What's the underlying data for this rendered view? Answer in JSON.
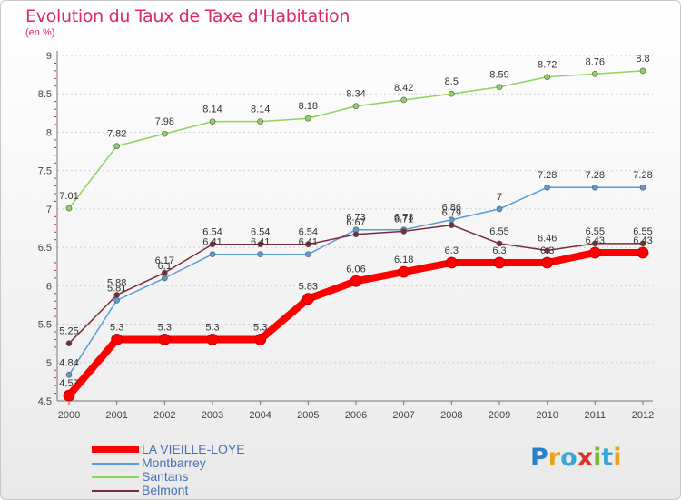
{
  "header": {
    "title": "Evolution du Taux de Taxe d'Habitation",
    "subtitle": "(en %)"
  },
  "logo": {
    "text": "Proxiti",
    "letters": [
      "P",
      "r",
      "o",
      "x",
      "i",
      "t",
      "i"
    ],
    "colors": [
      "#2a7fc9",
      "#e8a21c",
      "#3aa6d8",
      "#d9342b",
      "#7bb93a",
      "#3aa6d8",
      "#e8a21c"
    ]
  },
  "chart_data": {
    "type": "line",
    "title": "Evolution du Taux de Taxe d'Habitation",
    "subtitle": "(en %)",
    "x": [
      "2000",
      "2001",
      "2002",
      "2003",
      "2004",
      "2005",
      "2006",
      "2007",
      "2008",
      "2009",
      "2010",
      "2011",
      "2012"
    ],
    "ylim": [
      4.5,
      9
    ],
    "yticks": [
      "4.5",
      "5",
      "5.5",
      "6",
      "6.5",
      "7",
      "7.5",
      "8",
      "8.5",
      "9"
    ],
    "grid": "horizontal-dotted",
    "legend_position": "bottom-left",
    "series": [
      {
        "name": "LA VIEILLE-LOYE",
        "color": "#ff0000",
        "values": [
          4.57,
          5.3,
          5.3,
          5.3,
          5.3,
          5.83,
          6.06,
          6.18,
          6.3,
          6.3,
          6.3,
          6.43,
          6.43
        ],
        "labels": [
          "4.57",
          "5.3",
          "5.3",
          "5.3",
          "5.3",
          "5.83",
          "6.06",
          "6.18",
          "6.3",
          "6.3",
          "6.3",
          "6.43",
          "6.43"
        ]
      },
      {
        "name": "Montbarrey",
        "color": "#5b9bd5",
        "values": [
          4.84,
          5.81,
          6.1,
          6.41,
          6.41,
          6.41,
          6.73,
          6.73,
          6.86,
          7,
          7.28,
          7.28,
          7.28
        ],
        "labels": [
          "4.84",
          "5.81",
          "6.1",
          "6.41",
          "6.41",
          "6.41",
          "6.73",
          "6.73",
          "6.86",
          "7",
          "7.28",
          "7.28",
          "7.28"
        ]
      },
      {
        "name": "Santans",
        "color": "#8fd35a",
        "values": [
          7.01,
          7.82,
          7.98,
          8.14,
          8.14,
          8.18,
          8.34,
          8.42,
          8.5,
          8.59,
          8.72,
          8.76,
          8.8
        ],
        "labels": [
          "7.01",
          "7.82",
          "7.98",
          "8.14",
          "8.14",
          "8.18",
          "8.34",
          "8.42",
          "8.5",
          "8.59",
          "8.72",
          "8.76",
          "8.8"
        ]
      },
      {
        "name": "Belmont",
        "color": "#7b2c3b",
        "values": [
          5.25,
          5.88,
          6.17,
          6.54,
          6.54,
          6.54,
          6.67,
          6.71,
          6.79,
          6.55,
          6.46,
          6.55,
          6.55
        ],
        "labels": [
          "5.25",
          "5.88",
          "6.17",
          "6.54",
          "6.54",
          "6.54",
          "6.67",
          "6.71",
          "6.79",
          "6.55",
          "6.46",
          "6.55",
          "6.55"
        ]
      }
    ]
  }
}
